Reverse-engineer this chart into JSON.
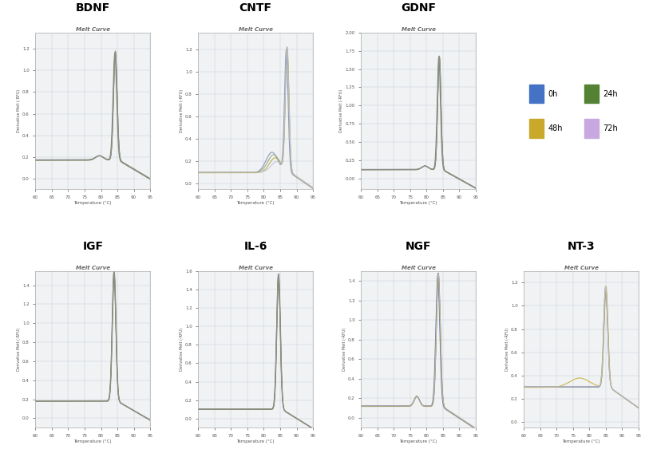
{
  "panels_top": [
    "BDNF",
    "CNTF",
    "GDNF"
  ],
  "panels_bottom": [
    "IGF",
    "IL-6",
    "NGF",
    "NT-3"
  ],
  "subtitle": "Melt Curve",
  "xlabel": "Temperature (°C)",
  "ylabel": "Derivative Melt (-RFU)",
  "colors": {
    "0h": "#4472c4",
    "24h": "#548235",
    "48h": "#c9a92c",
    "72h": "#c8a8e0"
  },
  "legend_labels": [
    "0h",
    "24h",
    "48h",
    "72h"
  ],
  "background": "#ffffff",
  "grid_color": "#c8d0d8",
  "plot_bg": "#f0f2f4"
}
